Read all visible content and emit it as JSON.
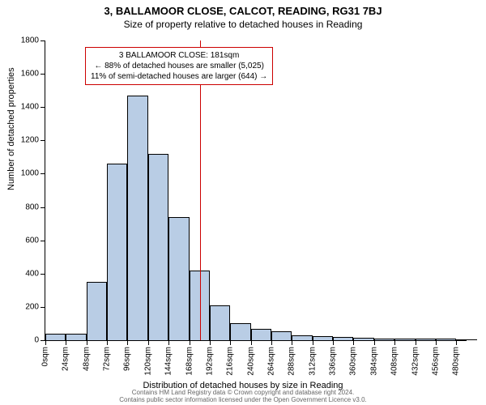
{
  "title": "3, BALLAMOOR CLOSE, CALCOT, READING, RG31 7BJ",
  "subtitle": "Size of property relative to detached houses in Reading",
  "ylabel": "Number of detached properties",
  "xlabel": "Distribution of detached houses by size in Reading",
  "annotation": {
    "line1": "3 BALLAMOOR CLOSE: 181sqm",
    "line2": "← 88% of detached houses are smaller (5,025)",
    "line3": "11% of semi-detached houses are larger (644) →",
    "border_color": "#cc0000"
  },
  "footer": {
    "line1": "Contains HM Land Registry data © Crown copyright and database right 2024.",
    "line2": "Contains public sector information licensed under the Open Government Licence v3.0."
  },
  "chart": {
    "type": "histogram",
    "ylim": [
      0,
      1800
    ],
    "ytick_step": 200,
    "xlim": [
      0,
      492
    ],
    "xtick_step": 24,
    "xtick_suffix": "sqm",
    "bar_color": "#b9cde5",
    "bar_border": "#000000",
    "vline_x": 181,
    "vline_color": "#cc0000",
    "background_color": "#ffffff",
    "bin_width": 24,
    "bins": [
      {
        "x": 0,
        "count": 40
      },
      {
        "x": 24,
        "count": 40
      },
      {
        "x": 48,
        "count": 350
      },
      {
        "x": 72,
        "count": 1060
      },
      {
        "x": 96,
        "count": 1470
      },
      {
        "x": 120,
        "count": 1120
      },
      {
        "x": 144,
        "count": 740
      },
      {
        "x": 168,
        "count": 420
      },
      {
        "x": 192,
        "count": 210
      },
      {
        "x": 216,
        "count": 100
      },
      {
        "x": 240,
        "count": 70
      },
      {
        "x": 264,
        "count": 55
      },
      {
        "x": 288,
        "count": 30
      },
      {
        "x": 312,
        "count": 25
      },
      {
        "x": 336,
        "count": 20
      },
      {
        "x": 360,
        "count": 15
      },
      {
        "x": 384,
        "count": 10
      },
      {
        "x": 408,
        "count": 10
      },
      {
        "x": 432,
        "count": 8
      },
      {
        "x": 456,
        "count": 10
      },
      {
        "x": 480,
        "count": 5
      }
    ]
  }
}
